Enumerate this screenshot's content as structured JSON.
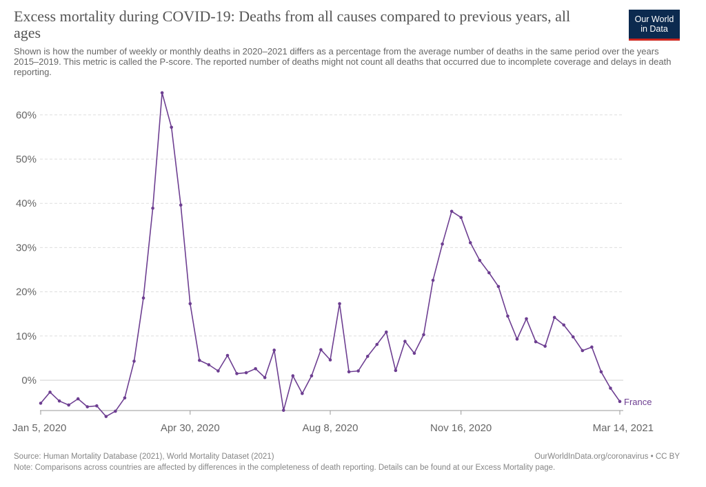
{
  "header": {
    "title": "Excess mortality during COVID-19: Deaths from all causes compared to previous years, all ages",
    "subtitle": "Shown is how the number of weekly or monthly deaths in 2020–2021 differs as a percentage from the average number of deaths in the same period over the years 2015–2019. This metric is called the P-score. The reported number of deaths might not count all deaths that occurred due to incomplete coverage and delays in death reporting."
  },
  "logo": {
    "line1": "Our World",
    "line2": "in Data",
    "bg": "#0c2a4f",
    "accent": "#ce261e"
  },
  "chart_data": {
    "type": "line",
    "title": "Excess mortality during COVID-19: Deaths from all causes compared to previous years, all ages",
    "xlabel": "",
    "ylabel": "",
    "ylim": [
      -8,
      66
    ],
    "yticks": [
      0,
      10,
      20,
      30,
      40,
      50,
      60
    ],
    "ytick_labels": [
      "0%",
      "10%",
      "20%",
      "30%",
      "40%",
      "50%",
      "60%"
    ],
    "xticks": [
      0,
      16,
      31,
      45,
      62
    ],
    "xtick_labels": [
      "Jan 5, 2020",
      "Apr 30, 2020",
      "Aug 8, 2020",
      "Nov 16, 2020",
      "Mar 14, 2021"
    ],
    "grid": true,
    "legend": "end-of-line label",
    "color": "#6d3e91",
    "series": [
      {
        "name": "France",
        "values": [
          -5.2,
          -2.7,
          -4.7,
          -5.6,
          -4.2,
          -6.0,
          -5.8,
          -8.2,
          -7.0,
          -4.0,
          4.3,
          18.6,
          38.9,
          65.0,
          57.2,
          39.6,
          17.3,
          4.5,
          3.5,
          2.1,
          5.6,
          1.5,
          1.7,
          2.6,
          0.6,
          6.8,
          -6.8,
          1.0,
          -3.0,
          1.0,
          6.9,
          4.6,
          17.3,
          1.9,
          2.1,
          5.4,
          8.1,
          10.9,
          2.2,
          8.8,
          6.1,
          10.3,
          22.6,
          30.8,
          38.2,
          36.8,
          31.1,
          27.1,
          24.3,
          21.2,
          14.5,
          9.3,
          13.9,
          8.7,
          7.7,
          14.2,
          12.5,
          9.8,
          6.7,
          7.5,
          1.9,
          -1.8,
          -4.8
        ]
      }
    ]
  },
  "footer": {
    "source": "Source: Human Mortality Database (2021), World Mortality Dataset (2021)",
    "note": "Note: Comparisons across countries are affected by differences in the completeness of death reporting. Details can be found at our Excess Mortality page.",
    "credit": "OurWorldInData.org/coronavirus • CC BY"
  }
}
